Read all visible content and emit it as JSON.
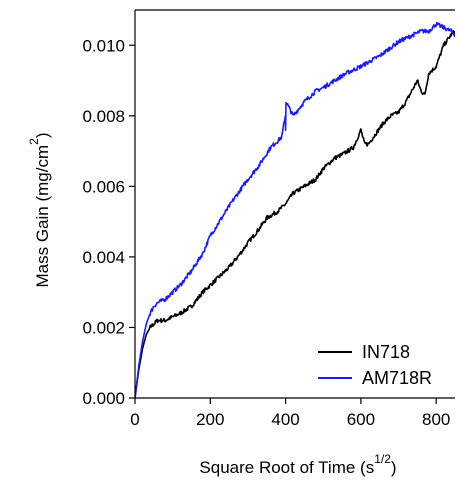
{
  "chart_data": {
    "type": "line",
    "title": "",
    "xlabel": "Square Root of Time (s",
    "xlabel_sup": "1/2",
    "xlabel_suffix": ")",
    "ylabel": "Mass Gain (mg/cm",
    "ylabel_sup": "2",
    "ylabel_suffix": ")",
    "xlim": [
      0,
      850
    ],
    "ylim": [
      0,
      0.011
    ],
    "x_ticks": [
      0,
      200,
      400,
      600,
      800
    ],
    "x_tick_labels": [
      "0",
      "200",
      "400",
      "600",
      "800"
    ],
    "y_ticks": [
      0,
      0.002,
      0.004,
      0.006,
      0.008,
      0.01
    ],
    "y_tick_labels": [
      "0.000",
      "0.002",
      "0.004",
      "0.006",
      "0.008",
      "0.010"
    ],
    "grid": false,
    "legend_position": "bottom-right",
    "series": [
      {
        "name": "IN718",
        "color": "#000000",
        "x": [
          0,
          10,
          20,
          30,
          40,
          50,
          60,
          80,
          100,
          120,
          150,
          180,
          200,
          220,
          250,
          280,
          300,
          330,
          350,
          380,
          400,
          420,
          450,
          480,
          500,
          530,
          550,
          580,
          600,
          610,
          620,
          640,
          660,
          680,
          700,
          720,
          740,
          750,
          760,
          770,
          780,
          800,
          820,
          840,
          850
        ],
        "y": [
          0.0,
          0.0008,
          0.0014,
          0.0018,
          0.002,
          0.0021,
          0.0022,
          0.0022,
          0.0023,
          0.0024,
          0.0026,
          0.003,
          0.0032,
          0.0034,
          0.0037,
          0.0041,
          0.0044,
          0.0048,
          0.0051,
          0.0053,
          0.0055,
          0.0058,
          0.006,
          0.0062,
          0.0065,
          0.0068,
          0.0069,
          0.0071,
          0.0076,
          0.0072,
          0.0072,
          0.0075,
          0.0078,
          0.008,
          0.0081,
          0.0084,
          0.0088,
          0.009,
          0.0087,
          0.0086,
          0.0092,
          0.0094,
          0.01,
          0.0103,
          0.0104
        ]
      },
      {
        "name": "AM718R",
        "color": "#1a1aff",
        "x": [
          0,
          10,
          20,
          30,
          40,
          50,
          60,
          80,
          100,
          120,
          150,
          180,
          200,
          230,
          260,
          300,
          330,
          360,
          390,
          399,
          400,
          401,
          420,
          450,
          480,
          500,
          530,
          560,
          600,
          650,
          700,
          740,
          760,
          780,
          800,
          820,
          840,
          850
        ],
        "y": [
          0.0,
          0.0009,
          0.0016,
          0.0021,
          0.0024,
          0.0026,
          0.0027,
          0.0028,
          0.003,
          0.0032,
          0.0036,
          0.0041,
          0.0046,
          0.0051,
          0.0056,
          0.0062,
          0.0066,
          0.0071,
          0.0074,
          0.008,
          0.0076,
          0.0084,
          0.008,
          0.0084,
          0.0087,
          0.0088,
          0.009,
          0.0092,
          0.0094,
          0.0097,
          0.0101,
          0.0103,
          0.0104,
          0.0104,
          0.0106,
          0.0105,
          0.0104,
          0.0103
        ]
      }
    ]
  }
}
